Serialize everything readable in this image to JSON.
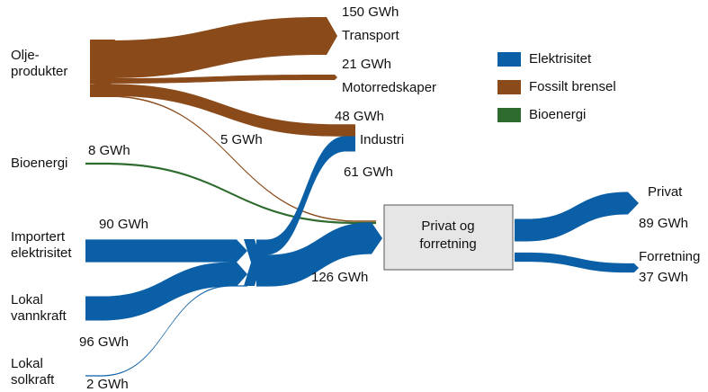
{
  "chart_data": {
    "type": "sankey",
    "series": [
      {
        "name": "Elektrisitet",
        "color": "#0a5fa6"
      },
      {
        "name": "Fossilt brensel",
        "color": "#8a4a1a"
      },
      {
        "name": "Bioenergi",
        "color": "#2e6b2e"
      }
    ],
    "nodes": [
      {
        "label": [
          "Olje-",
          "produkter"
        ]
      },
      {
        "label": [
          "Bioenergi"
        ]
      },
      {
        "label": [
          "Importert",
          "elektrisitet"
        ]
      },
      {
        "label": [
          "Lokal",
          "vannkraft"
        ]
      },
      {
        "label": [
          "Lokal",
          "solkraft"
        ]
      },
      {
        "label": [
          "Transport"
        ]
      },
      {
        "label": [
          "Motorredskaper"
        ]
      },
      {
        "label": [
          "Industri"
        ]
      },
      {
        "label": [
          "Privat og",
          "forretning"
        ]
      },
      {
        "label": [
          "Privat"
        ]
      },
      {
        "label": [
          "Forretning"
        ]
      }
    ],
    "links": [
      {
        "source": 0,
        "target": 5,
        "value": 150,
        "value_label": "150 GWh",
        "series": 1
      },
      {
        "source": 0,
        "target": 6,
        "value": 21,
        "value_label": "21 GWh",
        "series": 1
      },
      {
        "source": 0,
        "target": 7,
        "value": 48,
        "value_label": "48 GWh",
        "series": 1
      },
      {
        "source": 0,
        "target": 8,
        "value": 5,
        "value_label": "5 GWh",
        "series": 1
      },
      {
        "source": 1,
        "target": 8,
        "value": 8,
        "value_label": "8 GWh",
        "series": 2
      },
      {
        "source": 2,
        "target": null,
        "value": 90,
        "value_label": "90 GWh",
        "series": 0
      },
      {
        "source": 3,
        "target": null,
        "value": 96,
        "value_label": "96 GWh",
        "series": 0
      },
      {
        "source": 4,
        "target": null,
        "value": 2,
        "value_label": "2 GWh",
        "series": 0
      },
      {
        "source": null,
        "target": 7,
        "value": 61,
        "value_label": "61 GWh",
        "series": 0
      },
      {
        "source": null,
        "target": 8,
        "value": 126,
        "value_label": "126 GWh",
        "series": 0
      },
      {
        "source": 8,
        "target": 9,
        "value": 89,
        "value_label": "89 GWh",
        "series": 0
      },
      {
        "source": 8,
        "target": 10,
        "value": 37,
        "value_label": "37 GWh",
        "series": 0
      }
    ]
  }
}
